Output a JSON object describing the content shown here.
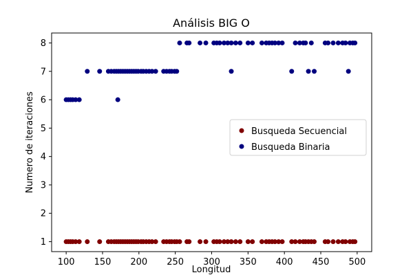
{
  "chart_data": {
    "type": "scatter",
    "title": "Análisis BIG O",
    "xlabel": "Longitud",
    "ylabel": "Numero de iteraciones",
    "xlim": [
      80,
      520
    ],
    "ylim": [
      0.65,
      8.35
    ],
    "xticks": [
      100,
      150,
      200,
      250,
      300,
      350,
      400,
      450,
      500
    ],
    "yticks": [
      1,
      2,
      3,
      4,
      5,
      6,
      7,
      8
    ],
    "grid": false,
    "legend_position": "center-right",
    "series": [
      {
        "name": "Busqueda Secuencial",
        "color": "#800000",
        "points": [
          [
            100,
            1
          ],
          [
            103,
            1
          ],
          [
            106,
            1
          ],
          [
            109,
            1
          ],
          [
            113,
            1
          ],
          [
            118,
            1
          ],
          [
            129,
            1
          ],
          [
            146,
            1
          ],
          [
            158,
            1
          ],
          [
            162,
            1
          ],
          [
            166,
            1
          ],
          [
            169,
            1
          ],
          [
            172,
            1
          ],
          [
            175,
            1
          ],
          [
            178,
            1
          ],
          [
            181,
            1
          ],
          [
            184,
            1
          ],
          [
            187,
            1
          ],
          [
            190,
            1
          ],
          [
            193,
            1
          ],
          [
            196,
            1
          ],
          [
            199,
            1
          ],
          [
            203,
            1
          ],
          [
            206,
            1
          ],
          [
            210,
            1
          ],
          [
            214,
            1
          ],
          [
            218,
            1
          ],
          [
            223,
            1
          ],
          [
            234,
            1
          ],
          [
            238,
            1
          ],
          [
            242,
            1
          ],
          [
            245,
            1
          ],
          [
            249,
            1
          ],
          [
            252,
            1
          ],
          [
            256,
            1
          ],
          [
            266,
            1
          ],
          [
            269,
            1
          ],
          [
            284,
            1
          ],
          [
            292,
            1
          ],
          [
            303,
            1
          ],
          [
            307,
            1
          ],
          [
            311,
            1
          ],
          [
            317,
            1
          ],
          [
            322,
            1
          ],
          [
            327,
            1
          ],
          [
            333,
            1
          ],
          [
            339,
            1
          ],
          [
            350,
            1
          ],
          [
            356,
            1
          ],
          [
            369,
            1
          ],
          [
            375,
            1
          ],
          [
            379,
            1
          ],
          [
            383,
            1
          ],
          [
            387,
            1
          ],
          [
            392,
            1
          ],
          [
            397,
            1
          ],
          [
            410,
            1
          ],
          [
            415,
            1
          ],
          [
            421,
            1
          ],
          [
            426,
            1
          ],
          [
            429,
            1
          ],
          [
            433,
            1
          ],
          [
            437,
            1
          ],
          [
            441,
            1
          ],
          [
            456,
            1
          ],
          [
            460,
            1
          ],
          [
            467,
            1
          ],
          [
            474,
            1
          ],
          [
            480,
            1
          ],
          [
            484,
            1
          ],
          [
            490,
            1
          ],
          [
            494,
            1
          ],
          [
            497,
            1
          ]
        ]
      },
      {
        "name": "Busqueda Binaria",
        "color": "#00007f",
        "points": [
          [
            100,
            6
          ],
          [
            103,
            6
          ],
          [
            106,
            6
          ],
          [
            109,
            6
          ],
          [
            113,
            6
          ],
          [
            118,
            6
          ],
          [
            171,
            6
          ],
          [
            129,
            7
          ],
          [
            146,
            7
          ],
          [
            158,
            7
          ],
          [
            162,
            7
          ],
          [
            166,
            7
          ],
          [
            169,
            7
          ],
          [
            172,
            7
          ],
          [
            175,
            7
          ],
          [
            178,
            7
          ],
          [
            181,
            7
          ],
          [
            184,
            7
          ],
          [
            187,
            7
          ],
          [
            190,
            7
          ],
          [
            193,
            7
          ],
          [
            196,
            7
          ],
          [
            199,
            7
          ],
          [
            203,
            7
          ],
          [
            206,
            7
          ],
          [
            210,
            7
          ],
          [
            214,
            7
          ],
          [
            218,
            7
          ],
          [
            223,
            7
          ],
          [
            234,
            7
          ],
          [
            238,
            7
          ],
          [
            242,
            7
          ],
          [
            245,
            7
          ],
          [
            249,
            7
          ],
          [
            252,
            7
          ],
          [
            327,
            7
          ],
          [
            410,
            7
          ],
          [
            433,
            7
          ],
          [
            441,
            7
          ],
          [
            488,
            7
          ],
          [
            256,
            8
          ],
          [
            266,
            8
          ],
          [
            269,
            8
          ],
          [
            284,
            8
          ],
          [
            292,
            8
          ],
          [
            303,
            8
          ],
          [
            307,
            8
          ],
          [
            311,
            8
          ],
          [
            317,
            8
          ],
          [
            322,
            8
          ],
          [
            327,
            8
          ],
          [
            333,
            8
          ],
          [
            339,
            8
          ],
          [
            350,
            8
          ],
          [
            356,
            8
          ],
          [
            369,
            8
          ],
          [
            375,
            8
          ],
          [
            379,
            8
          ],
          [
            383,
            8
          ],
          [
            387,
            8
          ],
          [
            392,
            8
          ],
          [
            397,
            8
          ],
          [
            415,
            8
          ],
          [
            421,
            8
          ],
          [
            426,
            8
          ],
          [
            429,
            8
          ],
          [
            437,
            8
          ],
          [
            456,
            8
          ],
          [
            460,
            8
          ],
          [
            467,
            8
          ],
          [
            474,
            8
          ],
          [
            480,
            8
          ],
          [
            484,
            8
          ],
          [
            490,
            8
          ],
          [
            494,
            8
          ],
          [
            497,
            8
          ]
        ]
      }
    ]
  }
}
